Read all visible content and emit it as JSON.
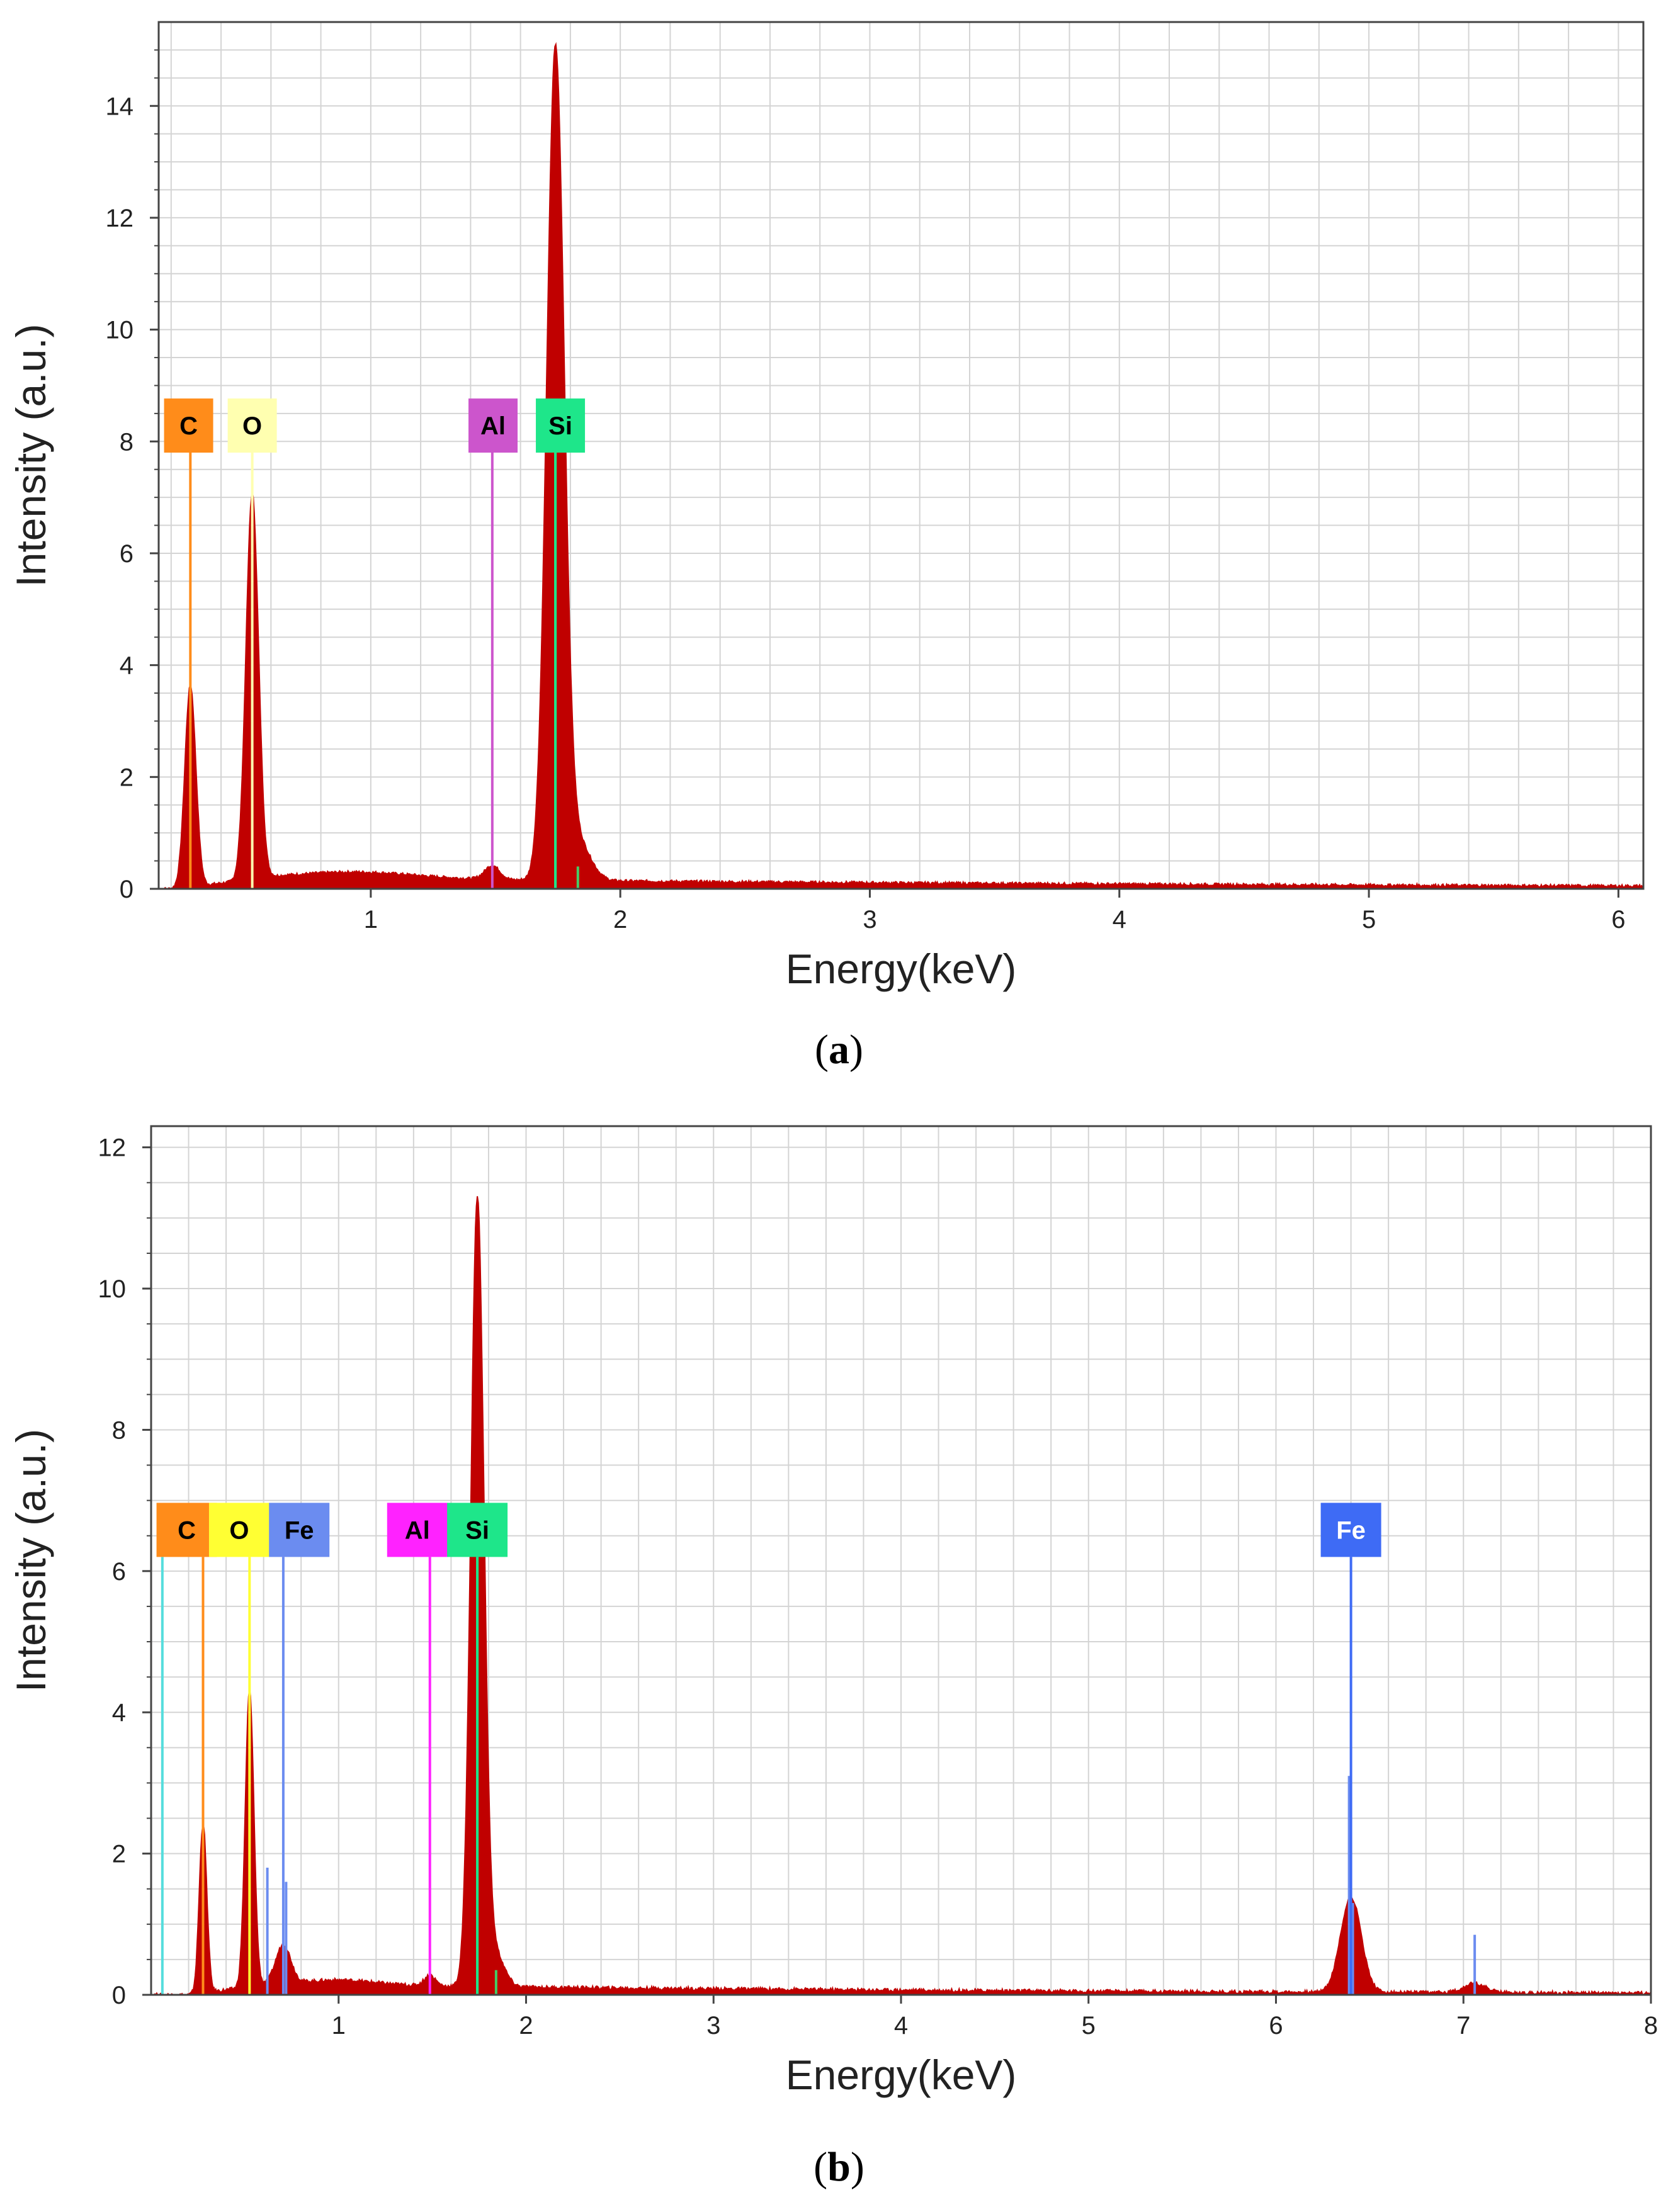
{
  "chart_data": [
    {
      "type": "line",
      "panel_label": "a",
      "title": "",
      "xlabel": "Energy(keV)",
      "ylabel": "Intensity (a.u.)",
      "xlim": [
        0.15,
        6.1
      ],
      "ylim": [
        0,
        15.5
      ],
      "x_ticks": [
        1,
        2,
        3,
        4,
        5,
        6
      ],
      "y_ticks": [
        0,
        2,
        4,
        6,
        8,
        10,
        12,
        14
      ],
      "grid": true,
      "fill_color": "#c00000",
      "background": 0.18,
      "peaks": [
        {
          "center": 0.277,
          "height": 3.6,
          "width": 0.022
        },
        {
          "center": 0.525,
          "height": 6.9,
          "width": 0.025
        },
        {
          "center": 0.93,
          "height": 0.12,
          "width": 0.25
        },
        {
          "center": 1.487,
          "height": 0.25,
          "width": 0.03
        },
        {
          "center": 1.74,
          "height": 14.8,
          "width": 0.035
        },
        {
          "center": 1.83,
          "height": 0.7,
          "width": 0.05
        }
      ],
      "element_markers": [
        {
          "label": "C",
          "energy": 0.277,
          "color": "#ff8c1a",
          "text_color": "#000000",
          "box_energy": 0.27,
          "line_top": 7.8
        },
        {
          "label": "O",
          "energy": 0.525,
          "color": "#ffffb0",
          "text_color": "#000000",
          "box_energy": 0.525,
          "line_top": 7.8
        },
        {
          "label": "Al",
          "energy": 1.487,
          "color": "#cc55cc",
          "text_color": "#000000",
          "box_energy": 1.49,
          "line_top": 7.8
        },
        {
          "label": "Si",
          "energy": 1.74,
          "color": "#1ee68a",
          "text_color": "#000000",
          "box_energy": 1.76,
          "line_top": 7.8
        }
      ],
      "extra_lines": [
        {
          "energy": 1.74,
          "top": 7.8,
          "color": "#44cc66"
        },
        {
          "energy": 1.83,
          "top": 0.4,
          "color": "#44cc66"
        }
      ]
    },
    {
      "type": "line",
      "panel_label": "b",
      "title": "",
      "xlabel": "Energy(keV)",
      "ylabel": "Intensity (a.u.)",
      "xlim": [
        0.0,
        8.0
      ],
      "ylim": [
        0,
        12.3
      ],
      "x_ticks": [
        1,
        2,
        3,
        4,
        5,
        6,
        7,
        8
      ],
      "y_ticks": [
        0,
        2,
        4,
        6,
        8,
        10,
        12
      ],
      "grid": true,
      "fill_color": "#c00000",
      "background": 0.14,
      "peaks": [
        {
          "center": 0.277,
          "height": 2.4,
          "width": 0.02
        },
        {
          "center": 0.525,
          "height": 4.2,
          "width": 0.023
        },
        {
          "center": 0.705,
          "height": 0.55,
          "width": 0.04
        },
        {
          "center": 1.0,
          "height": 0.07,
          "width": 0.2
        },
        {
          "center": 1.487,
          "height": 0.15,
          "width": 0.03
        },
        {
          "center": 1.74,
          "height": 11.1,
          "width": 0.035
        },
        {
          "center": 1.83,
          "height": 0.5,
          "width": 0.05
        },
        {
          "center": 6.4,
          "height": 1.35,
          "width": 0.055
        },
        {
          "center": 7.06,
          "height": 0.13,
          "width": 0.06
        }
      ],
      "element_markers": [
        {
          "label": "C",
          "energy": 0.277,
          "color": "#ff8c1a",
          "text_color": "#000000",
          "box_energy": 0.19,
          "line_top": 6.2
        },
        {
          "label": "O",
          "energy": 0.525,
          "color": "#ffff33",
          "text_color": "#000000",
          "box_energy": 0.47,
          "line_top": 6.2
        },
        {
          "label": "Fe",
          "energy": 0.705,
          "color": "#6b8cf0",
          "text_color": "#000000",
          "box_energy": 0.79,
          "line_top": 6.2
        },
        {
          "label": "Al",
          "energy": 1.487,
          "color": "#ff22ff",
          "text_color": "#000000",
          "box_energy": 1.42,
          "line_top": 6.2
        },
        {
          "label": "Si",
          "energy": 1.74,
          "color": "#1ee68a",
          "text_color": "#000000",
          "box_energy": 1.74,
          "line_top": 6.2
        },
        {
          "label": "Fe",
          "energy": 6.4,
          "color": "#3e6bf5",
          "text_color": "#ffffff",
          "box_energy": 6.4,
          "line_top": 6.2
        }
      ],
      "extra_lines": [
        {
          "energy": 0.06,
          "top": 6.2,
          "color": "#55dddd"
        },
        {
          "energy": 0.62,
          "top": 1.8,
          "color": "#6b8cf0"
        },
        {
          "energy": 0.72,
          "top": 1.6,
          "color": "#6b8cf0"
        },
        {
          "energy": 6.39,
          "top": 3.1,
          "color": "#6b8cf0"
        },
        {
          "energy": 6.41,
          "top": 1.3,
          "color": "#6b8cf0"
        },
        {
          "energy": 7.06,
          "top": 0.85,
          "color": "#6b8cf0"
        },
        {
          "energy": 1.74,
          "top": 6.2,
          "color": "#44cc66"
        },
        {
          "energy": 1.84,
          "top": 0.35,
          "color": "#44cc66"
        }
      ]
    }
  ]
}
